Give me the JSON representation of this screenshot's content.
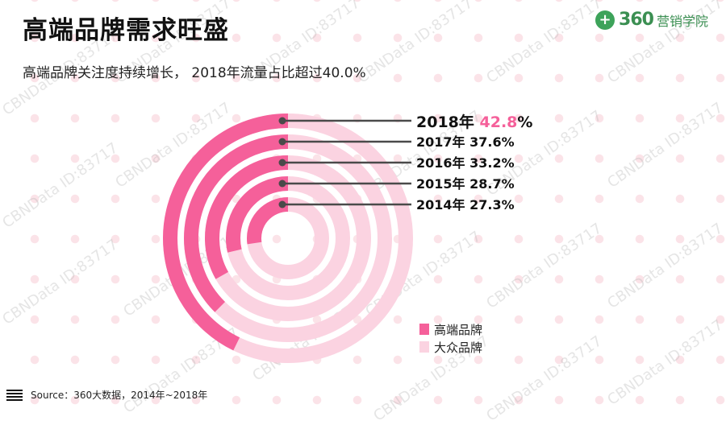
{
  "header": {
    "title": "高端品牌需求旺盛",
    "subtitle": "高端品牌关注度持续增长，  2018年流量占比超过40.0%"
  },
  "brand": {
    "logo_icon": "plus-circle-icon",
    "logo_number": "360",
    "name": "营销学院"
  },
  "watermark": "CBNData ID:83717",
  "colors": {
    "premium": "#f5609a",
    "mass": "#fbd3e1",
    "highlight": "#f5609a",
    "leader": "#4a4a4a",
    "background_dots": "#fbe3e8"
  },
  "chart_data": {
    "type": "radial-bar",
    "unit": "%",
    "title": "",
    "series": [
      {
        "name": "高端品牌",
        "color": "#f5609a"
      },
      {
        "name": "大众品牌",
        "color": "#fbd3e1"
      }
    ],
    "rings": [
      {
        "year": "2018年",
        "value": 42.8,
        "value_text": "42.8",
        "suffix": "%",
        "highlight": true
      },
      {
        "year": "2017年",
        "value": 37.6,
        "value_text": "37.6%",
        "suffix": "",
        "highlight": false
      },
      {
        "year": "2016年",
        "value": 33.2,
        "value_text": "33.2%",
        "suffix": "",
        "highlight": false
      },
      {
        "year": "2015年",
        "value": 28.7,
        "value_text": "28.7%",
        "suffix": "",
        "highlight": false
      },
      {
        "year": "2014年",
        "value": 27.3,
        "value_text": "27.3%",
        "suffix": "",
        "highlight": false
      }
    ]
  },
  "legend": {
    "premium_label": "高端品牌",
    "mass_label": "大众品牌"
  },
  "footer": {
    "source": "Source：360大数据，2014年~2018年"
  }
}
